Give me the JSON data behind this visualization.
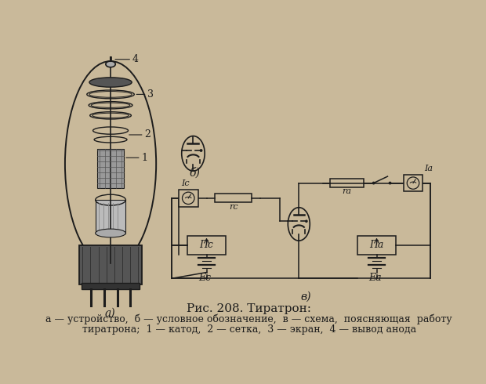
{
  "bg": "#c9b99a",
  "ink": "#1c1c1c",
  "title": "Рис. 208. Тиратрон:",
  "cap1": "а — устройство,  б — условное обозначение,  в — схема,  поясняющая  работу",
  "cap2": "тиратрона;  1 — катод,  2 — сетка,  3 — экран,  4 — вывод анода"
}
